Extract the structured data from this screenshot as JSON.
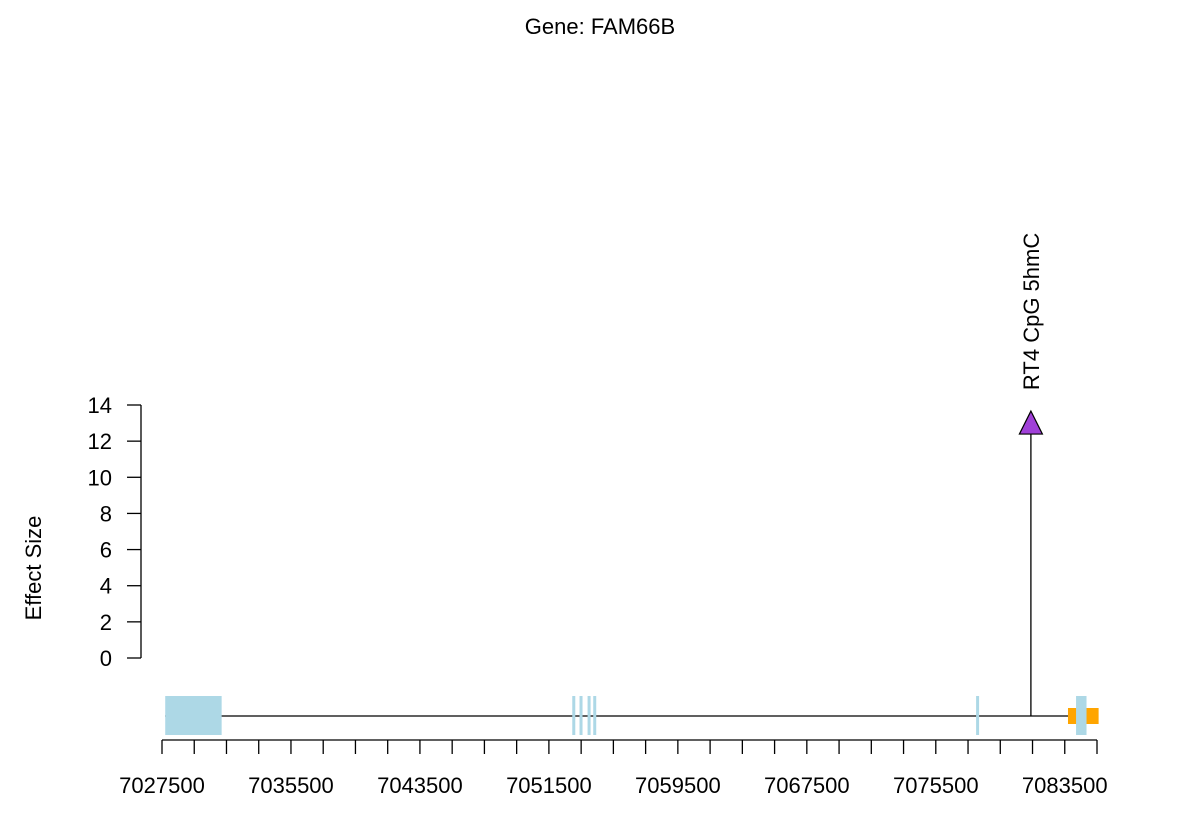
{
  "chart_data": {
    "type": "lollipop",
    "title": "Gene: FAM66B",
    "ylabel": "Effect Size",
    "xlabel": "",
    "ylim": [
      0,
      14
    ],
    "y_ticks": [
      "0",
      "2",
      "4",
      "6",
      "8",
      "10",
      "12",
      "14"
    ],
    "xlim": [
      7027500,
      7085500
    ],
    "x_tick_labels": [
      "7027500",
      "7035500",
      "7043500",
      "7051500",
      "7059500",
      "7067500",
      "7075500",
      "7083500"
    ],
    "x_label_positions": [
      7027500,
      7035500,
      7043500,
      7051500,
      7059500,
      7067500,
      7075500,
      7083500
    ],
    "x_minor_step": 2000,
    "gene_line": {
      "start": 7027700,
      "end": 7084350
    },
    "exons": [
      {
        "start": 7027700,
        "end": 7031200
      },
      {
        "start": 7052950,
        "end": 7053050
      },
      {
        "start": 7053400,
        "end": 7053500
      },
      {
        "start": 7053900,
        "end": 7054000
      },
      {
        "start": 7054250,
        "end": 7054350
      },
      {
        "start": 7078000,
        "end": 7078100
      },
      {
        "start": 7084200,
        "end": 7084850
      }
    ],
    "utr": {
      "start": 7083700,
      "end": 7085600
    },
    "points": [
      {
        "x": 7081400,
        "y": 13.0,
        "label": "RT4 CpG 5hmC",
        "color": "#a040d8"
      }
    ],
    "colors": {
      "exon": "#add8e6",
      "utr": "#ffa500",
      "axis": "#000000"
    }
  }
}
